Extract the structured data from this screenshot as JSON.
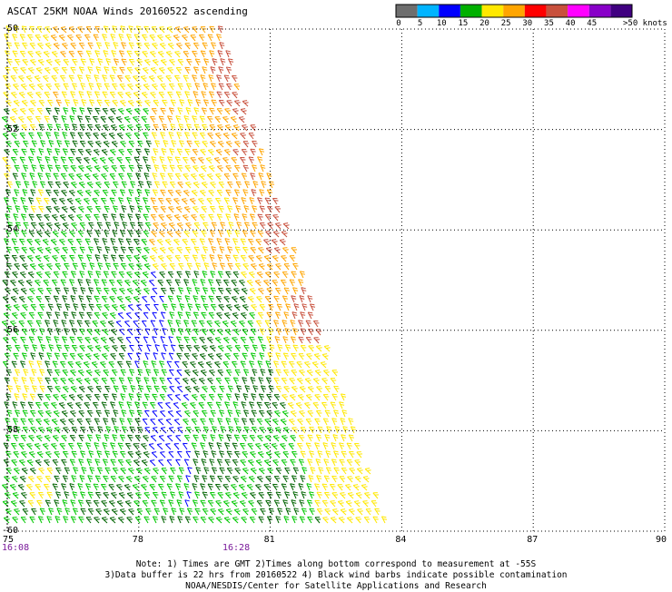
{
  "title": "ASCAT 25KM NOAA Winds 20160522 ascending",
  "color_scale": {
    "bins": [
      {
        "label": "0",
        "color": "#6e6e6e"
      },
      {
        "label": "5",
        "color": "#00b4ff"
      },
      {
        "label": "10",
        "color": "#0000ff"
      },
      {
        "label": "15",
        "color": "#00b000"
      },
      {
        "label": "20",
        "color": "#ffe800"
      },
      {
        "label": "25",
        "color": "#ffa500"
      },
      {
        "label": "30",
        "color": "#ff0000"
      },
      {
        "label": "35",
        "color": "#c8503c"
      },
      {
        "label": "40",
        "color": "#ff00ff"
      },
      {
        "label": "45",
        "color": "#8800c8"
      }
    ],
    "last_color": "#400080",
    "units_label": ">50 knots"
  },
  "axes": {
    "lon_labels": [
      "75",
      "78",
      "81",
      "84",
      "87",
      "90"
    ],
    "lat_labels": [
      "-50",
      "-52",
      "-54",
      "-56",
      "-58",
      "-60"
    ],
    "time_labels": [
      {
        "text": "16:08",
        "lon": 75
      },
      {
        "text": "16:28",
        "lon": 80.2
      }
    ]
  },
  "notes": [
    "Note: 1) Times are GMT 2)Times along bottom correspond to measurement at -55S",
    "3)Data buffer is 22 hrs from 20160522 4) Black wind barbs indicate possible contamination",
    "NOAA/NESDIS/Center for Satellite Applications and Research"
  ],
  "colors": {
    "yellow": "#ffe800",
    "orange": "#ffa500",
    "brown": "#c8503c",
    "green_light": "#00c800",
    "green_dark": "#006400",
    "blue": "#0000ff",
    "black": "#000000",
    "grid": "#000000",
    "time": "#7a1a9a"
  }
}
